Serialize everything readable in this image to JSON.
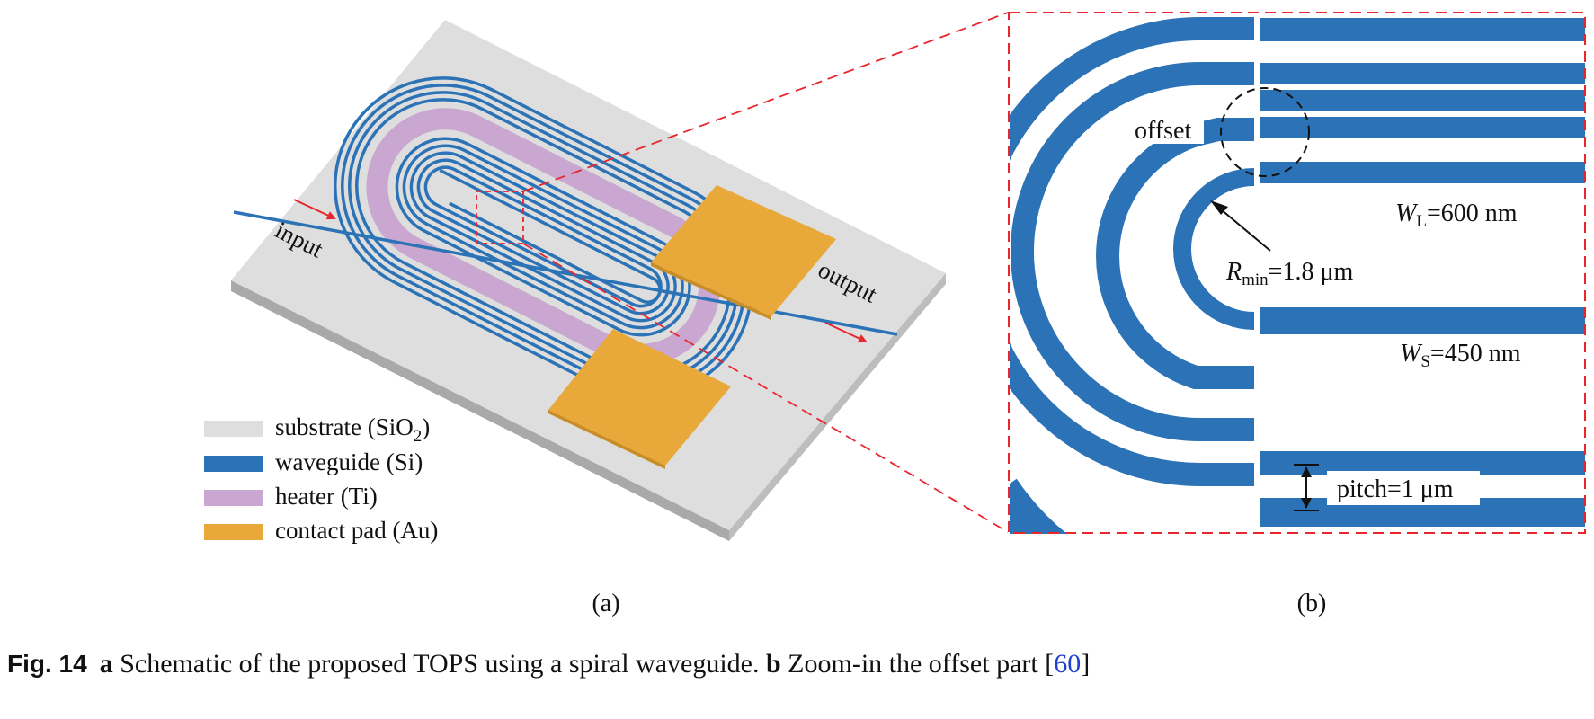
{
  "panel_a": {
    "input_label": "input",
    "output_label": "output",
    "sublabel": "(a)",
    "legend": [
      {
        "main": "substrate (SiO",
        "sub": "2",
        "tail": ")",
        "color": "#dedede"
      },
      {
        "main": "waveguide (Si)",
        "sub": "",
        "tail": "",
        "color": "#2b73b6"
      },
      {
        "main": "heater (Ti)",
        "sub": "",
        "tail": "",
        "color": "#c9a7d1"
      },
      {
        "main": "contact pad (Au)",
        "sub": "",
        "tail": "",
        "color": "#e8a93a"
      }
    ]
  },
  "panel_b": {
    "offset_label": "offset",
    "wl_sym": "W",
    "wl_sub": "L",
    "wl_val": "=600 nm",
    "r_sym": "R",
    "r_sub": "min",
    "r_val": "=1.8 μm",
    "ws_sym": "W",
    "ws_sub": "S",
    "ws_val": "=450 nm",
    "pitch_label": "pitch=1 μm",
    "sublabel": "(b)"
  },
  "caption": {
    "fig": "Fig. 14",
    "a_bold": "a",
    "a_text": " Schematic of the proposed TOPS using a spiral waveguide. ",
    "b_bold": "b",
    "b_text": " Zoom-in the offset part [",
    "ref": "60",
    "end": "]"
  },
  "colors": {
    "substrate": "#dedede",
    "waveguide": "#2b73b6",
    "heater": "#c9a7d1",
    "pad": "#e8a93a",
    "zoom_box": "#e8262d"
  }
}
